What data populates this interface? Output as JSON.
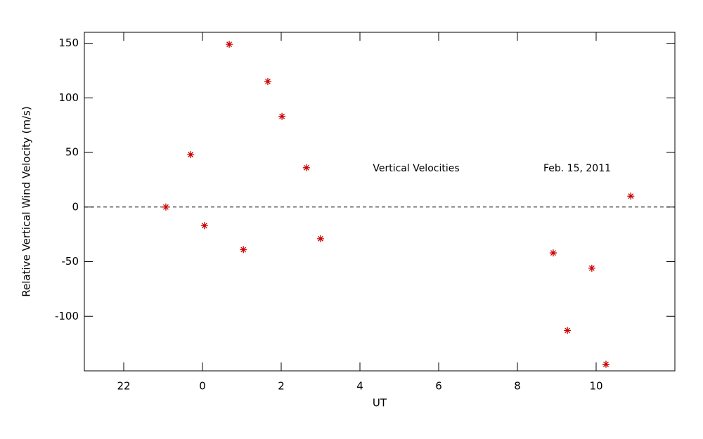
{
  "chart_data": {
    "type": "scatter",
    "x_label": "UT",
    "y_label": "Relative Vertical Wind Velocity (m/s)",
    "annotations": [
      "Vertical Velocities",
      "Feb. 15, 2011"
    ],
    "series": [
      {
        "name": "Vertical Velocities",
        "color": "#cc0000",
        "x": [
          -0.93,
          -0.3,
          0.05,
          0.68,
          1.04,
          1.66,
          2.02,
          2.64,
          3.0,
          8.91,
          9.27,
          9.89,
          10.25,
          10.88
        ],
        "values": [
          0,
          48,
          -17,
          149,
          -39,
          115,
          83,
          36,
          -29,
          -42,
          -113,
          -56,
          -144,
          10
        ]
      }
    ],
    "xlim": [
      -3,
      12
    ],
    "xticks": [
      {
        "value": -2,
        "label": "22"
      },
      0,
      2,
      4,
      6,
      8,
      10
    ],
    "ylim": [
      -150,
      160
    ],
    "yticks": [
      -100,
      -50,
      0,
      50,
      100,
      150
    ],
    "reference_line": 0
  }
}
